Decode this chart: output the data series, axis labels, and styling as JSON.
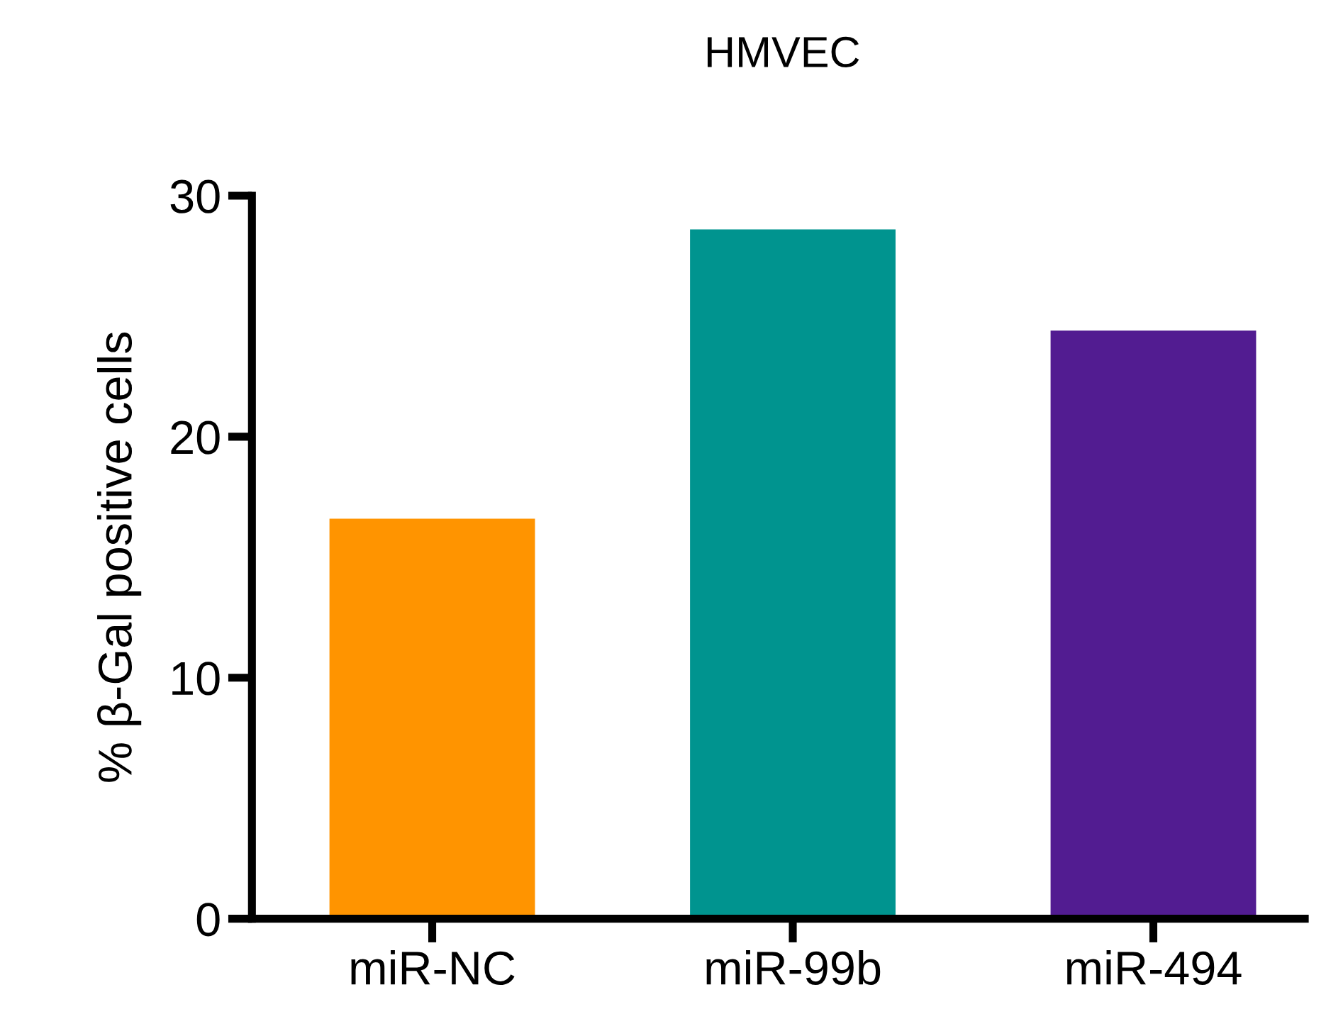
{
  "chart_data": {
    "type": "bar",
    "title": "HMVEC",
    "ylabel": "% β-Gal positive cells",
    "categories": [
      "miR-NC",
      "miR-99b",
      "miR-494"
    ],
    "values": [
      16.6,
      28.6,
      24.4
    ],
    "colors": [
      "#ff9400",
      "#00948f",
      "#521c91"
    ],
    "ylim": [
      0,
      30
    ],
    "yticks": [
      0,
      10,
      20,
      30
    ],
    "grid": false,
    "legend": false
  }
}
